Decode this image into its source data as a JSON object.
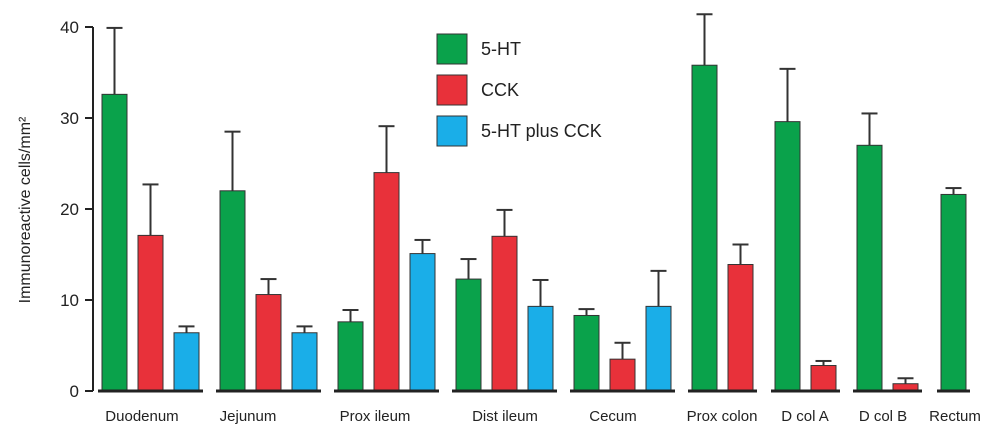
{
  "chart_data": {
    "type": "bar",
    "ylabel": "Immunoreactive cells/mm²",
    "ylim": [
      0,
      40
    ],
    "yticks": [
      0,
      10,
      20,
      30,
      40
    ],
    "grid": false,
    "legend_position": "top-center",
    "categories": [
      "Duodenum",
      "Jejunum",
      "Prox ileum",
      "Dist ileum",
      "Cecum",
      "Prox colon",
      "D col A",
      "D col B",
      "Rectum"
    ],
    "series": [
      {
        "name": "5-HT",
        "color": "#0aa24b",
        "values": [
          32.6,
          22.0,
          7.6,
          12.3,
          8.3,
          35.8,
          29.6,
          27.0,
          21.6
        ],
        "errors": [
          7.3,
          6.5,
          1.3,
          2.2,
          0.7,
          5.6,
          5.8,
          3.5,
          0.7
        ]
      },
      {
        "name": "CCK",
        "color": "#e8313a",
        "values": [
          17.1,
          10.6,
          24.0,
          17.0,
          3.5,
          13.9,
          2.8,
          0.8,
          null
        ],
        "errors": [
          5.6,
          1.7,
          5.1,
          2.9,
          1.8,
          2.2,
          0.5,
          0.6,
          null
        ]
      },
      {
        "name": "5-HT plus CCK",
        "color": "#1aaee8",
        "values": [
          6.4,
          6.4,
          15.1,
          9.3,
          9.3,
          null,
          null,
          null,
          null
        ],
        "errors": [
          0.7,
          0.7,
          1.5,
          2.9,
          3.9,
          null,
          null,
          null,
          null
        ]
      }
    ]
  }
}
